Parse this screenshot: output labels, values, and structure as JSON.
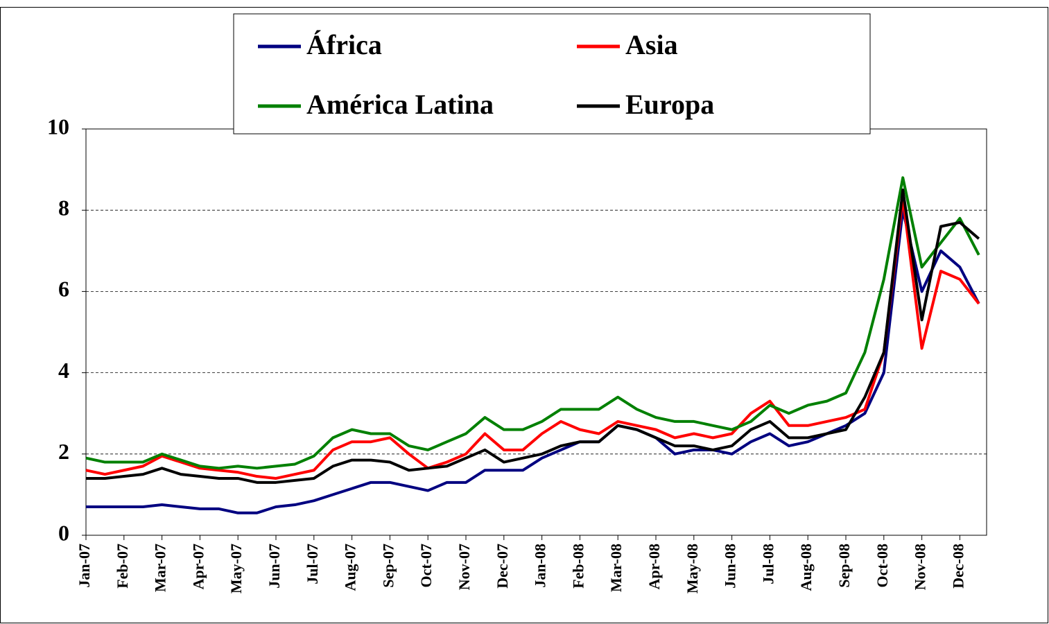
{
  "chart_data": {
    "type": "line",
    "categories": [
      "Jan-07",
      null,
      "Feb-07",
      null,
      "Mar-07",
      null,
      "Apr-07",
      null,
      "May-07",
      null,
      "Jun-07",
      null,
      "Jul-07",
      null,
      "Aug-07",
      null,
      "Sep-07",
      null,
      "Oct-07",
      null,
      "Nov-07",
      null,
      "Dec-07",
      null,
      "Jan-08",
      null,
      "Feb-08",
      null,
      "Mar-08",
      null,
      "Apr-08",
      null,
      "May-08",
      null,
      "Jun-08",
      null,
      "Jul-08",
      null,
      "Aug-08",
      null,
      "Sep-08",
      null,
      "Oct-08",
      null,
      "Nov-08",
      null,
      "Dec-08",
      null
    ],
    "series": [
      {
        "name": "África",
        "color": "#000080",
        "values": [
          0.7,
          0.7,
          0.7,
          0.7,
          0.75,
          0.7,
          0.65,
          0.65,
          0.55,
          0.55,
          0.7,
          0.75,
          0.85,
          1.0,
          1.15,
          1.3,
          1.3,
          1.2,
          1.1,
          1.3,
          1.3,
          1.6,
          1.6,
          1.6,
          1.9,
          2.1,
          2.3,
          2.3,
          2.7,
          2.6,
          2.4,
          2.0,
          2.1,
          2.1,
          2.0,
          2.3,
          2.5,
          2.2,
          2.3,
          2.5,
          2.7,
          3.0,
          4.0,
          8.0,
          6.0,
          7.0,
          6.6,
          5.7
        ]
      },
      {
        "name": "Asia",
        "color": "#ff0000",
        "values": [
          1.6,
          1.5,
          1.6,
          1.7,
          1.95,
          1.8,
          1.65,
          1.6,
          1.55,
          1.45,
          1.4,
          1.5,
          1.6,
          2.1,
          2.3,
          2.3,
          2.4,
          2.0,
          1.65,
          1.8,
          2.0,
          2.5,
          2.1,
          2.1,
          2.5,
          2.8,
          2.6,
          2.5,
          2.8,
          2.7,
          2.6,
          2.4,
          2.5,
          2.4,
          2.5,
          3.0,
          3.3,
          2.7,
          2.7,
          2.8,
          2.9,
          3.1,
          4.5,
          8.3,
          4.6,
          6.5,
          6.3,
          5.7
        ]
      },
      {
        "name": "América Latina",
        "color": "#008000",
        "values": [
          1.9,
          1.8,
          1.8,
          1.8,
          2.0,
          1.85,
          1.7,
          1.65,
          1.7,
          1.65,
          1.7,
          1.75,
          1.95,
          2.4,
          2.6,
          2.5,
          2.5,
          2.2,
          2.1,
          2.3,
          2.5,
          2.9,
          2.6,
          2.6,
          2.8,
          3.1,
          3.1,
          3.1,
          3.4,
          3.1,
          2.9,
          2.8,
          2.8,
          2.7,
          2.6,
          2.8,
          3.2,
          3.0,
          3.2,
          3.3,
          3.5,
          4.5,
          6.3,
          8.8,
          6.6,
          7.2,
          7.8,
          6.9
        ]
      },
      {
        "name": "Europa",
        "color": "#000000",
        "values": [
          1.4,
          1.4,
          1.45,
          1.5,
          1.65,
          1.5,
          1.45,
          1.4,
          1.4,
          1.3,
          1.3,
          1.35,
          1.4,
          1.7,
          1.85,
          1.85,
          1.8,
          1.6,
          1.65,
          1.7,
          1.9,
          2.1,
          1.8,
          1.9,
          2.0,
          2.2,
          2.3,
          2.3,
          2.7,
          2.6,
          2.4,
          2.2,
          2.2,
          2.1,
          2.2,
          2.6,
          2.8,
          2.4,
          2.4,
          2.5,
          2.6,
          3.4,
          4.5,
          8.5,
          5.3,
          7.6,
          7.7,
          7.3
        ]
      }
    ],
    "ylim": [
      0,
      10
    ],
    "yticks": [
      0,
      2,
      4,
      6,
      8,
      10
    ],
    "grid": true
  }
}
